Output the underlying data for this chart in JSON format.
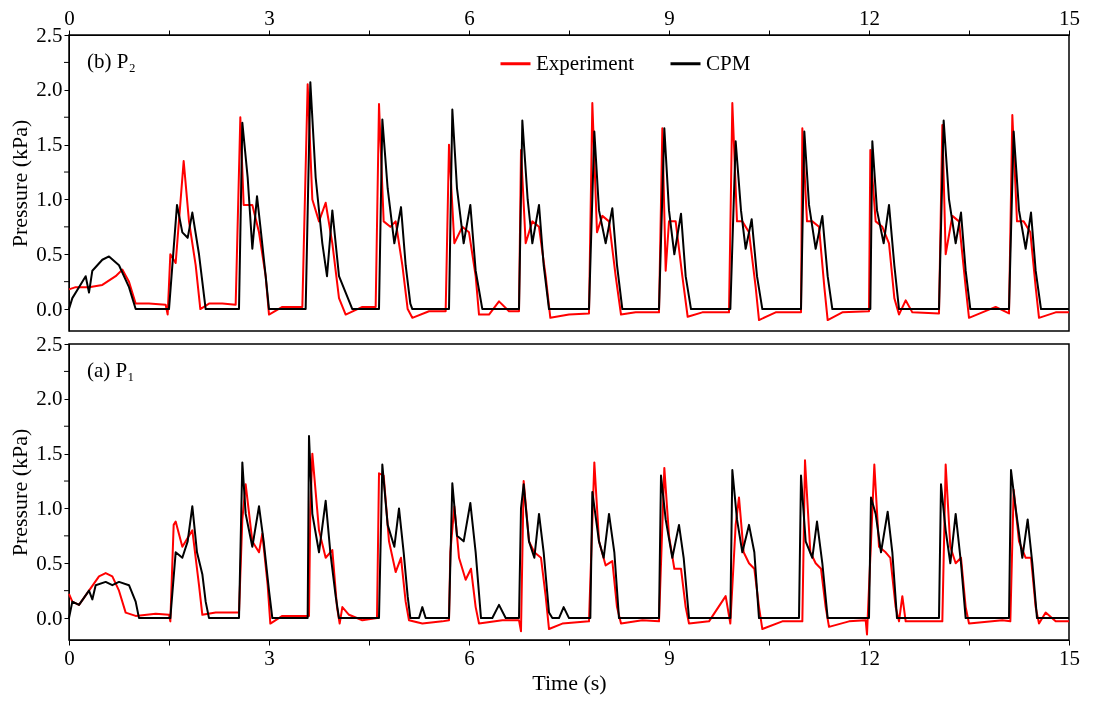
{
  "chart_data": [
    {
      "type": "line",
      "annotations": [
        "(b) P₂"
      ],
      "ylabel": "Pressure (kPa)",
      "legend": "top",
      "xlim": [
        0,
        15
      ],
      "xticks": [
        0,
        {
          "value": 1.5,
          "label": null
        },
        3,
        {
          "value": 4.5,
          "label": null
        },
        6,
        {
          "value": 7.5,
          "label": null
        },
        9,
        {
          "value": 10.5,
          "label": null
        },
        12,
        {
          "value": 13.5,
          "label": null
        },
        15
      ],
      "ylim": [
        -0.2,
        2.5
      ],
      "yticks": [
        {
          "value": 0,
          "label": "0.0"
        },
        {
          "value": 0.25,
          "label": null
        },
        {
          "value": 0.5,
          "label": "0.5"
        },
        {
          "value": 0.75,
          "label": null
        },
        {
          "value": 1,
          "label": "1.0"
        },
        {
          "value": 1.25,
          "label": null
        },
        {
          "value": 1.5,
          "label": "1.5"
        },
        {
          "value": 1.75,
          "label": null
        },
        {
          "value": 2,
          "label": "2.0"
        },
        {
          "value": 2.25,
          "label": null
        },
        {
          "value": 2.5,
          "label": "2.5"
        }
      ],
      "series": [
        {
          "name": "Experiment",
          "color": "#ff0000",
          "x": [
            0,
            0.1,
            0.3,
            0.5,
            0.7,
            0.8,
            0.9,
            1.0,
            1.2,
            1.45,
            1.48,
            1.52,
            1.6,
            1.72,
            1.8,
            1.9,
            1.97,
            2.1,
            2.3,
            2.5,
            2.57,
            2.62,
            2.75,
            2.85,
            2.95,
            3.0,
            3.2,
            3.5,
            3.58,
            3.65,
            3.75,
            3.85,
            3.95,
            4.05,
            4.15,
            4.4,
            4.6,
            4.65,
            4.72,
            4.82,
            4.9,
            5.0,
            5.08,
            5.15,
            5.4,
            5.65,
            5.7,
            5.78,
            5.9,
            6.0,
            6.1,
            6.15,
            6.3,
            6.45,
            6.6,
            6.75,
            6.78,
            6.85,
            6.95,
            7.05,
            7.15,
            7.22,
            7.5,
            7.8,
            7.85,
            7.92,
            8.0,
            8.1,
            8.2,
            8.28,
            8.5,
            8.85,
            8.9,
            8.95,
            9.0,
            9.1,
            9.2,
            9.28,
            9.5,
            9.9,
            9.95,
            10.02,
            10.1,
            10.2,
            10.3,
            10.35,
            10.6,
            10.98,
            11.0,
            11.07,
            11.15,
            11.25,
            11.33,
            11.38,
            11.6,
            12.0,
            12.02,
            12.1,
            12.2,
            12.3,
            12.38,
            12.45,
            12.55,
            12.65,
            13.05,
            13.1,
            13.15,
            13.25,
            13.35,
            13.45,
            13.5,
            13.7,
            13.9,
            14.1,
            14.15,
            14.22,
            14.32,
            14.42,
            14.5,
            14.55,
            14.8,
            15.0
          ],
          "values": [
            0.18,
            0.2,
            0.2,
            0.22,
            0.3,
            0.36,
            0.25,
            0.05,
            0.05,
            0.04,
            -0.05,
            0.5,
            0.42,
            1.35,
            0.8,
            0.4,
            0.0,
            0.05,
            0.05,
            0.04,
            1.75,
            0.95,
            0.95,
            0.7,
            0.3,
            -0.05,
            0.02,
            0.02,
            2.05,
            1.0,
            0.8,
            0.97,
            0.6,
            0.1,
            -0.05,
            0.02,
            0.02,
            1.87,
            0.8,
            0.75,
            0.8,
            0.4,
            0.0,
            -0.08,
            -0.02,
            -0.02,
            1.5,
            0.6,
            0.75,
            0.7,
            0.3,
            -0.05,
            -0.05,
            0.07,
            -0.02,
            -0.02,
            1.45,
            0.6,
            0.8,
            0.75,
            0.3,
            -0.08,
            -0.05,
            -0.04,
            1.88,
            0.7,
            0.85,
            0.8,
            0.3,
            -0.05,
            -0.03,
            -0.03,
            1.65,
            0.35,
            0.8,
            0.8,
            0.3,
            -0.07,
            -0.03,
            -0.03,
            1.88,
            0.8,
            0.8,
            0.7,
            0.2,
            -0.1,
            -0.03,
            -0.03,
            1.65,
            0.8,
            0.8,
            0.75,
            0.2,
            -0.1,
            -0.03,
            -0.02,
            1.45,
            0.8,
            0.75,
            0.6,
            0.1,
            -0.05,
            0.08,
            -0.03,
            -0.04,
            1.68,
            0.5,
            0.85,
            0.8,
            0.2,
            -0.08,
            -0.03,
            0.02,
            -0.04,
            1.77,
            0.8,
            0.8,
            0.7,
            0.2,
            -0.08,
            -0.03,
            -0.03
          ]
        },
        {
          "name": "CPM",
          "color": "#000000",
          "x": [
            0,
            0.05,
            0.15,
            0.25,
            0.3,
            0.35,
            0.5,
            0.6,
            0.75,
            0.9,
            1.0,
            1.5,
            1.62,
            1.7,
            1.78,
            1.85,
            1.95,
            2.05,
            2.55,
            2.6,
            2.68,
            2.75,
            2.82,
            2.88,
            2.95,
            3.0,
            3.55,
            3.62,
            3.7,
            3.8,
            3.87,
            3.95,
            4.05,
            4.15,
            4.25,
            4.65,
            4.7,
            4.78,
            4.88,
            4.98,
            5.05,
            5.12,
            5.15,
            5.7,
            5.75,
            5.82,
            5.92,
            6.02,
            6.1,
            6.2,
            6.75,
            6.8,
            6.88,
            6.95,
            7.05,
            7.12,
            7.2,
            7.8,
            7.88,
            7.95,
            8.05,
            8.15,
            8.22,
            8.3,
            8.85,
            8.93,
            9.0,
            9.08,
            9.18,
            9.25,
            9.33,
            9.92,
            10.0,
            10.08,
            10.15,
            10.24,
            10.32,
            10.4,
            10.98,
            11.03,
            11.1,
            11.2,
            11.3,
            11.38,
            11.45,
            12.02,
            12.05,
            12.12,
            12.22,
            12.3,
            12.38,
            12.45,
            13.05,
            13.12,
            13.2,
            13.3,
            13.38,
            13.45,
            13.52,
            14.1,
            14.17,
            14.25,
            14.35,
            14.43,
            14.5,
            14.58,
            15.0
          ],
          "values": [
            0.0,
            0.1,
            0.2,
            0.3,
            0.15,
            0.35,
            0.45,
            0.48,
            0.4,
            0.2,
            0.0,
            0.0,
            0.95,
            0.7,
            0.65,
            0.88,
            0.5,
            0.0,
            0.0,
            1.7,
            1.2,
            0.55,
            1.03,
            0.7,
            0.3,
            0.0,
            0.0,
            2.07,
            1.2,
            0.6,
            0.3,
            0.9,
            0.3,
            0.15,
            0.0,
            0.0,
            1.73,
            1.1,
            0.6,
            0.93,
            0.4,
            0.05,
            0.0,
            0.0,
            1.82,
            1.1,
            0.6,
            0.95,
            0.35,
            0.0,
            0.0,
            1.72,
            1.0,
            0.6,
            0.95,
            0.4,
            0.0,
            0.0,
            1.62,
            0.9,
            0.6,
            0.92,
            0.4,
            0.0,
            0.0,
            1.65,
            0.9,
            0.5,
            0.87,
            0.3,
            0.0,
            0.0,
            1.53,
            0.9,
            0.55,
            0.82,
            0.3,
            0.0,
            0.0,
            1.62,
            0.95,
            0.55,
            0.85,
            0.3,
            0.0,
            0.0,
            1.53,
            0.9,
            0.6,
            0.95,
            0.4,
            0.0,
            0.0,
            1.72,
            1.0,
            0.6,
            0.88,
            0.35,
            0.0,
            0.0,
            1.62,
            0.9,
            0.55,
            0.88,
            0.35,
            0.0,
            0.0
          ]
        }
      ]
    },
    {
      "type": "line",
      "annotations": [
        "(a) P₁"
      ],
      "xlabel": "Time (s)",
      "ylabel": "Pressure (kPa)",
      "xlim": [
        0,
        15
      ],
      "xticks": [
        0,
        {
          "value": 1.5,
          "label": null
        },
        3,
        {
          "value": 4.5,
          "label": null
        },
        6,
        {
          "value": 7.5,
          "label": null
        },
        9,
        {
          "value": 10.5,
          "label": null
        },
        12,
        {
          "value": 13.5,
          "label": null
        },
        15
      ],
      "ylim": [
        -0.2,
        2.5
      ],
      "yticks": [
        {
          "value": 0,
          "label": "0.0"
        },
        {
          "value": 0.25,
          "label": null
        },
        {
          "value": 0.5,
          "label": "0.5"
        },
        {
          "value": 0.75,
          "label": null
        },
        {
          "value": 1,
          "label": "1.0"
        },
        {
          "value": 1.25,
          "label": null
        },
        {
          "value": 1.5,
          "label": "1.5"
        },
        {
          "value": 1.75,
          "label": null
        },
        {
          "value": 2,
          "label": "2.0"
        },
        {
          "value": 2.25,
          "label": null
        },
        {
          "value": 2.5,
          "label": "2.5"
        }
      ],
      "series": [
        {
          "color": "#ff0000",
          "x": [
            0,
            0.05,
            0.15,
            0.3,
            0.45,
            0.55,
            0.65,
            0.75,
            0.85,
            1.0,
            1.3,
            1.5,
            1.52,
            1.57,
            1.6,
            1.7,
            1.8,
            1.85,
            1.95,
            2.0,
            2.2,
            2.55,
            2.6,
            2.65,
            2.75,
            2.85,
            2.9,
            2.98,
            3.02,
            3.2,
            3.6,
            3.62,
            3.65,
            3.75,
            3.85,
            3.95,
            4.02,
            4.06,
            4.1,
            4.2,
            4.4,
            4.62,
            4.65,
            4.72,
            4.8,
            4.9,
            4.98,
            5.05,
            5.1,
            5.3,
            5.6,
            5.7,
            5.72,
            5.78,
            5.85,
            5.95,
            6.03,
            6.1,
            6.15,
            6.5,
            6.75,
            6.78,
            6.82,
            6.9,
            6.98,
            7.08,
            7.15,
            7.2,
            7.4,
            7.8,
            7.88,
            7.95,
            8.05,
            8.15,
            8.22,
            8.28,
            8.6,
            8.85,
            8.93,
            9.0,
            9.08,
            9.18,
            9.25,
            9.3,
            9.6,
            9.85,
            9.92,
            10.0,
            10.05,
            10.12,
            10.2,
            10.28,
            10.35,
            10.4,
            10.7,
            11.0,
            11.04,
            11.12,
            11.2,
            11.28,
            11.35,
            11.4,
            11.7,
            11.95,
            11.97,
            12.08,
            12.15,
            12.25,
            12.32,
            12.4,
            12.45,
            12.5,
            12.55,
            13.1,
            13.15,
            13.22,
            13.3,
            13.38,
            13.45,
            13.5,
            14.0,
            14.12,
            14.17,
            14.25,
            14.35,
            14.43,
            14.5,
            14.55,
            14.65,
            14.8,
            15.0
          ],
          "values": [
            0.22,
            0.15,
            0.12,
            0.25,
            0.38,
            0.41,
            0.38,
            0.25,
            0.05,
            0.02,
            0.04,
            0.03,
            -0.03,
            0.85,
            0.88,
            0.65,
            0.75,
            0.8,
            0.3,
            0.03,
            0.05,
            0.05,
            0.9,
            1.22,
            0.7,
            0.6,
            0.77,
            0.3,
            -0.05,
            0.02,
            0.02,
            1.0,
            1.5,
            0.8,
            0.55,
            0.62,
            0.1,
            -0.05,
            0.1,
            0.03,
            -0.02,
            0.0,
            1.32,
            1.3,
            0.7,
            0.42,
            0.55,
            0.15,
            -0.02,
            -0.05,
            -0.03,
            -0.02,
            0.6,
            1.02,
            0.55,
            0.35,
            0.45,
            0.1,
            -0.05,
            -0.02,
            -0.02,
            -0.12,
            1.25,
            0.7,
            0.6,
            0.55,
            0.2,
            -0.1,
            -0.05,
            -0.03,
            1.42,
            0.7,
            0.48,
            0.52,
            0.1,
            -0.05,
            -0.02,
            -0.03,
            1.37,
            0.75,
            0.45,
            0.45,
            0.1,
            -0.05,
            -0.03,
            0.2,
            -0.05,
            0.85,
            1.1,
            0.6,
            0.5,
            0.45,
            0.1,
            -0.1,
            -0.03,
            -0.03,
            1.44,
            0.6,
            0.5,
            0.45,
            0.1,
            -0.08,
            -0.03,
            -0.02,
            -0.15,
            1.4,
            0.65,
            0.6,
            0.55,
            0.1,
            -0.03,
            0.2,
            -0.03,
            -0.03,
            1.4,
            0.65,
            0.5,
            0.55,
            0.1,
            -0.05,
            -0.02,
            -0.03,
            1.17,
            0.7,
            0.55,
            0.55,
            0.1,
            -0.05,
            0.05,
            -0.03,
            -0.03
          ]
        },
        {
          "color": "#000000",
          "x": [
            0,
            0.05,
            0.15,
            0.3,
            0.35,
            0.4,
            0.55,
            0.65,
            0.75,
            0.9,
            1.0,
            1.05,
            1.52,
            1.6,
            1.7,
            1.78,
            1.85,
            1.92,
            2.0,
            2.05,
            2.1,
            2.55,
            2.6,
            2.65,
            2.75,
            2.85,
            2.92,
            3.0,
            3.05,
            3.58,
            3.6,
            3.65,
            3.75,
            3.85,
            3.92,
            4.0,
            4.05,
            4.65,
            4.7,
            4.78,
            4.88,
            4.95,
            5.02,
            5.08,
            5.12,
            5.25,
            5.3,
            5.35,
            5.7,
            5.75,
            5.82,
            5.92,
            6.02,
            6.1,
            6.18,
            6.35,
            6.45,
            6.55,
            6.75,
            6.78,
            6.82,
            6.9,
            6.98,
            7.05,
            7.12,
            7.2,
            7.25,
            7.35,
            7.42,
            7.5,
            7.82,
            7.85,
            7.95,
            8.02,
            8.1,
            8.18,
            8.25,
            8.85,
            8.88,
            8.95,
            9.05,
            9.15,
            9.22,
            9.3,
            9.92,
            9.95,
            10.02,
            10.1,
            10.2,
            10.28,
            10.35,
            10.95,
            10.98,
            11.05,
            11.15,
            11.22,
            11.3,
            11.38,
            12.0,
            12.03,
            12.1,
            12.18,
            12.28,
            12.35,
            12.42,
            13.05,
            13.08,
            13.15,
            13.22,
            13.3,
            13.38,
            13.45,
            14.1,
            14.13,
            14.2,
            14.3,
            14.38,
            14.45,
            14.52,
            15.0
          ],
          "values": [
            0.0,
            0.15,
            0.12,
            0.25,
            0.17,
            0.3,
            0.33,
            0.3,
            0.33,
            0.3,
            0.15,
            0.0,
            0.0,
            0.6,
            0.55,
            0.7,
            1.02,
            0.6,
            0.4,
            0.15,
            0.0,
            0.0,
            1.42,
            0.95,
            0.65,
            1.02,
            0.7,
            0.25,
            0.0,
            0.0,
            1.66,
            0.95,
            0.6,
            1.07,
            0.6,
            0.2,
            0.0,
            0.0,
            1.4,
            0.85,
            0.65,
            1.0,
            0.6,
            0.2,
            0.0,
            0.0,
            0.1,
            0.0,
            0.0,
            1.23,
            0.75,
            0.7,
            1.05,
            0.6,
            0.0,
            0.0,
            0.12,
            0.0,
            0.0,
            1.0,
            1.22,
            0.7,
            0.55,
            0.95,
            0.6,
            0.05,
            0.0,
            0.0,
            0.1,
            0.0,
            0.0,
            1.15,
            0.7,
            0.55,
            0.95,
            0.6,
            0.0,
            0.0,
            1.3,
            0.9,
            0.55,
            0.85,
            0.55,
            0.0,
            0.0,
            1.35,
            0.9,
            0.6,
            0.85,
            0.6,
            0.0,
            0.0,
            1.3,
            0.7,
            0.55,
            0.88,
            0.5,
            0.0,
            0.0,
            1.1,
            0.95,
            0.6,
            0.97,
            0.6,
            0.0,
            0.0,
            1.22,
            0.8,
            0.5,
            0.95,
            0.5,
            0.0,
            0.0,
            1.35,
            1.0,
            0.55,
            0.9,
            0.5,
            0.0,
            0.0
          ]
        }
      ]
    }
  ]
}
